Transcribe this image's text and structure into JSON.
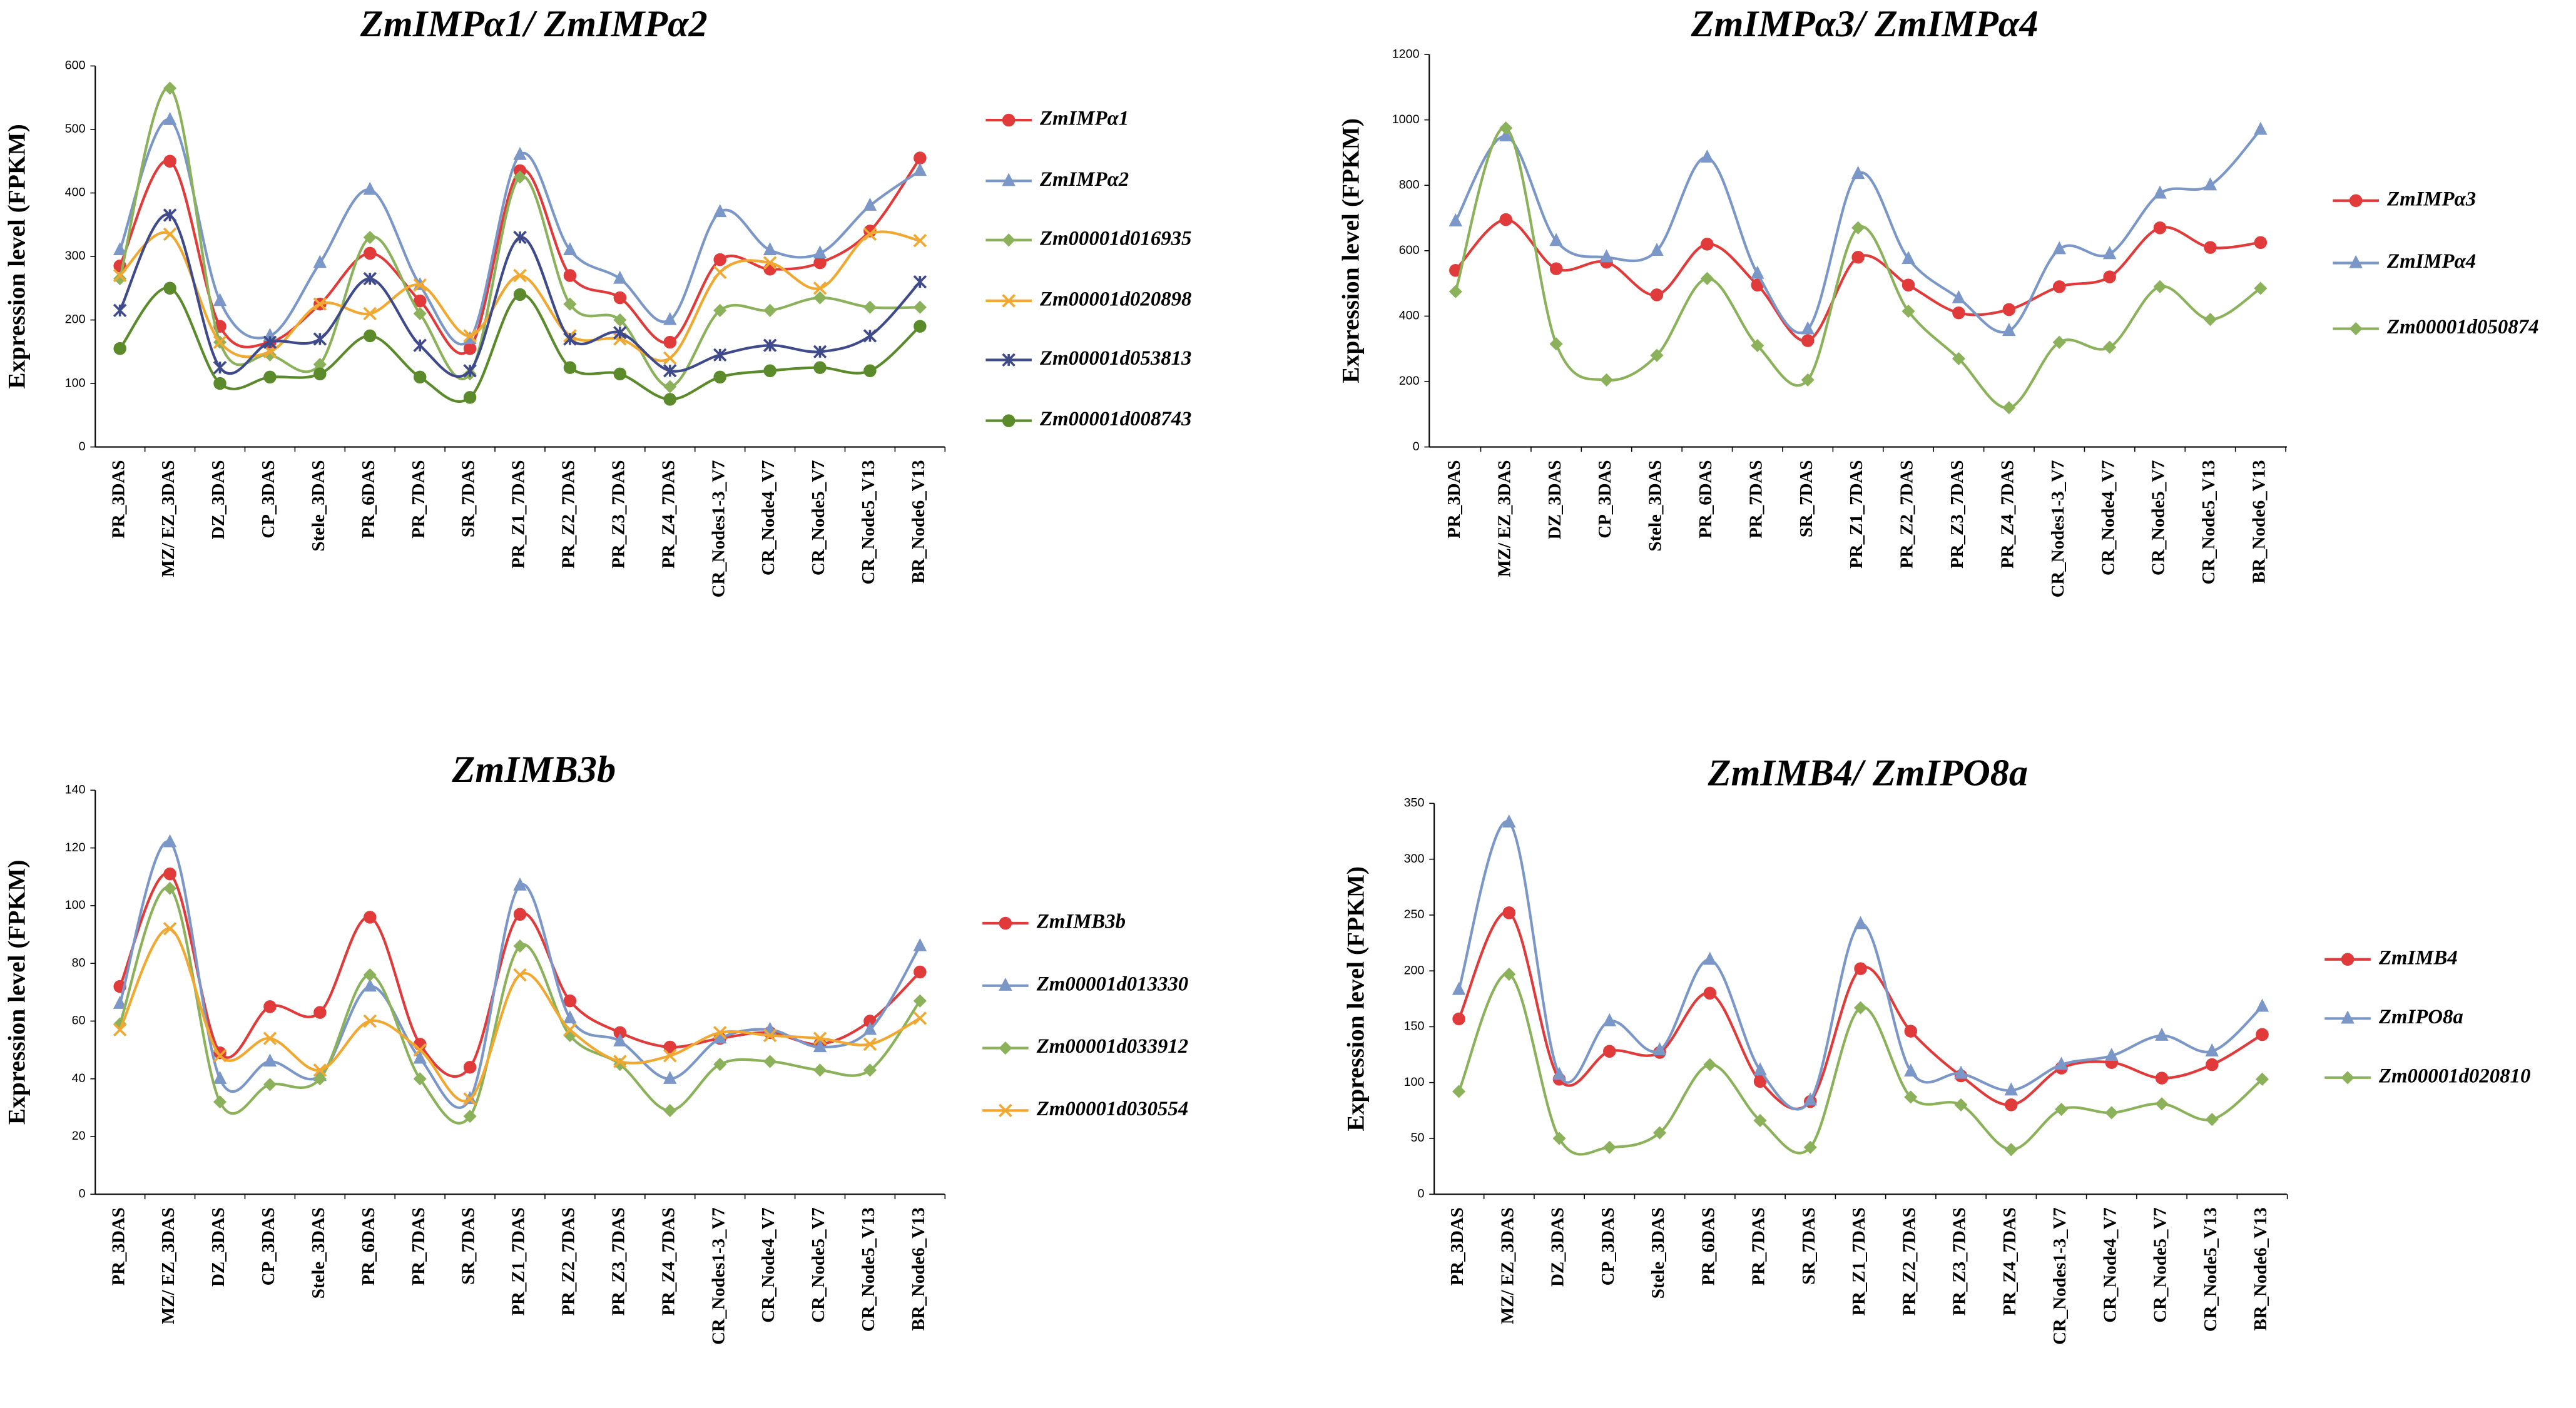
{
  "chart_data": [
    {
      "type": "line",
      "title": "ZmIMPα1/ ZmIMPα2",
      "y_label": "Expression level (FPKM)",
      "categories": [
        "PR_3DAS",
        "MZ/ EZ_3DAS",
        "DZ_3DAS",
        "CP_3DAS",
        "Stele_3DAS",
        "PR_6DAS",
        "PR_7DAS",
        "SR_7DAS",
        "PR_Z1_7DAS",
        "PR_Z2_7DAS",
        "PR_Z3_7DAS",
        "PR_Z4_7DAS",
        "CR_Nodes1-3_V7",
        "CR_Node4_V7",
        "CR_Node5_V7",
        "CR_Node5_V13",
        "BR_Node6_V13"
      ],
      "ylim": [
        0,
        600
      ],
      "yticks": [
        0,
        100,
        200,
        300,
        400,
        500,
        600
      ],
      "grid": false,
      "smooth": true,
      "series": [
        {
          "name": "ZmIMPα1",
          "color": "#e03a3a",
          "marker": "circle",
          "values": [
            285,
            450,
            190,
            165,
            225,
            305,
            230,
            155,
            435,
            270,
            235,
            165,
            295,
            280,
            290,
            340,
            455
          ]
        },
        {
          "name": "ZmIMPα2",
          "color": "#7b97c8",
          "marker": "triangle",
          "values": [
            310,
            515,
            230,
            175,
            290,
            405,
            255,
            170,
            460,
            310,
            265,
            200,
            370,
            310,
            305,
            380,
            435
          ]
        },
        {
          "name": "Zm00001d016935",
          "color": "#8bb15a",
          "marker": "diamond",
          "values": [
            265,
            565,
            165,
            145,
            130,
            330,
            210,
            115,
            425,
            225,
            200,
            95,
            215,
            215,
            235,
            220,
            220
          ]
        },
        {
          "name": "Zm00001d020898",
          "color": "#f0a830",
          "marker": "x",
          "values": [
            270,
            335,
            165,
            150,
            225,
            210,
            255,
            175,
            270,
            175,
            170,
            140,
            275,
            290,
            250,
            335,
            325
          ]
        },
        {
          "name": "Zm00001d053813",
          "color": "#3f4a8a",
          "marker": "star",
          "values": [
            215,
            365,
            125,
            165,
            170,
            265,
            160,
            120,
            330,
            170,
            180,
            120,
            145,
            160,
            150,
            175,
            260
          ]
        },
        {
          "name": "Zm00001d008743",
          "color": "#5a8a2a",
          "marker": "circle",
          "values": [
            155,
            250,
            100,
            110,
            115,
            175,
            110,
            78,
            240,
            125,
            115,
            75,
            110,
            120,
            125,
            120,
            190
          ]
        }
      ]
    },
    {
      "type": "line",
      "title": "ZmIMPα3/ ZmIMPα4",
      "y_label": "Expression level (FPKM)",
      "categories": [
        "PR_3DAS",
        "MZ/ EZ_3DAS",
        "DZ_3DAS",
        "CP_3DAS",
        "Stele_3DAS",
        "PR_6DAS",
        "PR_7DAS",
        "SR_7DAS",
        "PR_Z1_7DAS",
        "PR_Z2_7DAS",
        "PR_Z3_7DAS",
        "PR_Z4_7DAS",
        "CR_Nodes1-3_V7",
        "CR_Node4_V7",
        "CR_Node5_V7",
        "CR_Node5_V13",
        "BR_Node6_V13"
      ],
      "ylim": [
        0,
        1200
      ],
      "yticks": [
        0,
        200,
        400,
        600,
        800,
        1000,
        1200
      ],
      "grid": false,
      "smooth": true,
      "series": [
        {
          "name": "ZmIMPα3",
          "color": "#e03a3a",
          "marker": "circle",
          "values": [
            540,
            695,
            545,
            565,
            465,
            620,
            495,
            325,
            580,
            495,
            410,
            420,
            490,
            520,
            670,
            610,
            625
          ]
        },
        {
          "name": "ZmIMPα4",
          "color": "#7b97c8",
          "marker": "triangle",
          "values": [
            690,
            950,
            630,
            580,
            600,
            885,
            530,
            360,
            835,
            575,
            455,
            355,
            605,
            590,
            775,
            800,
            970
          ]
        },
        {
          "name": "Zm00001d050874",
          "color": "#8bb15a",
          "marker": "diamond",
          "values": [
            475,
            975,
            315,
            205,
            280,
            515,
            310,
            205,
            670,
            415,
            270,
            120,
            320,
            305,
            490,
            390,
            485
          ]
        }
      ]
    },
    {
      "type": "line",
      "title": "ZmIMB3b",
      "y_label": "Expression level (FPKM)",
      "categories": [
        "PR_3DAS",
        "MZ/ EZ_3DAS",
        "DZ_3DAS",
        "CP_3DAS",
        "Stele_3DAS",
        "PR_6DAS",
        "PR_7DAS",
        "SR_7DAS",
        "PR_Z1_7DAS",
        "PR_Z2_7DAS",
        "PR_Z3_7DAS",
        "PR_Z4_7DAS",
        "CR_Nodes1-3_V7",
        "CR_Node4_V7",
        "CR_Node5_V7",
        "CR_Node5_V13",
        "BR_Node6_V13"
      ],
      "ylim": [
        0,
        140
      ],
      "yticks": [
        0,
        20,
        40,
        60,
        80,
        100,
        120,
        140
      ],
      "grid": false,
      "smooth": true,
      "series": [
        {
          "name": "ZmIMB3b",
          "color": "#e03a3a",
          "marker": "circle",
          "values": [
            72,
            111,
            49,
            65,
            63,
            96,
            52,
            44,
            97,
            67,
            56,
            51,
            54,
            56,
            52,
            60,
            77
          ]
        },
        {
          "name": "Zm00001d013330",
          "color": "#7b97c8",
          "marker": "triangle",
          "values": [
            66,
            122,
            40,
            46,
            41,
            72,
            47,
            33,
            107,
            61,
            53,
            40,
            54,
            57,
            51,
            57,
            86
          ]
        },
        {
          "name": "Zm00001d033912",
          "color": "#8bb15a",
          "marker": "diamond",
          "values": [
            59,
            106,
            32,
            38,
            40,
            76,
            40,
            27,
            86,
            55,
            45,
            29,
            45,
            46,
            43,
            43,
            67
          ]
        },
        {
          "name": "Zm00001d030554",
          "color": "#f0a830",
          "marker": "x",
          "values": [
            57,
            92,
            48,
            54,
            43,
            60,
            50,
            33,
            76,
            57,
            46,
            48,
            56,
            55,
            54,
            52,
            61
          ]
        }
      ]
    },
    {
      "type": "line",
      "title": "ZmIMB4/ ZmIPO8a",
      "y_label": "Expression level (FPKM)",
      "categories": [
        "PR_3DAS",
        "MZ/ EZ_3DAS",
        "DZ_3DAS",
        "CP_3DAS",
        "Stele_3DAS",
        "PR_6DAS",
        "PR_7DAS",
        "SR_7DAS",
        "PR_Z1_7DAS",
        "PR_Z2_7DAS",
        "PR_Z3_7DAS",
        "PR_Z4_7DAS",
        "CR_Nodes1-3_V7",
        "CR_Node4_V7",
        "CR_Node5_V7",
        "CR_Node5_V13",
        "BR_Node6_V13"
      ],
      "ylim": [
        0,
        350
      ],
      "yticks": [
        0,
        50,
        100,
        150,
        200,
        250,
        300,
        350
      ],
      "grid": false,
      "smooth": true,
      "series": [
        {
          "name": "ZmIMB4",
          "color": "#e03a3a",
          "marker": "circle",
          "values": [
            157,
            252,
            103,
            128,
            127,
            180,
            101,
            83,
            202,
            146,
            106,
            80,
            113,
            118,
            104,
            116,
            143
          ]
        },
        {
          "name": "ZmIPO8a",
          "color": "#7b97c8",
          "marker": "triangle",
          "values": [
            183,
            333,
            107,
            155,
            129,
            210,
            111,
            84,
            242,
            110,
            108,
            93,
            116,
            124,
            142,
            128,
            168
          ]
        },
        {
          "name": "Zm00001d020810",
          "color": "#8bb15a",
          "marker": "diamond",
          "values": [
            92,
            197,
            50,
            42,
            55,
            116,
            66,
            42,
            167,
            87,
            80,
            40,
            76,
            73,
            81,
            67,
            103
          ]
        }
      ]
    }
  ]
}
